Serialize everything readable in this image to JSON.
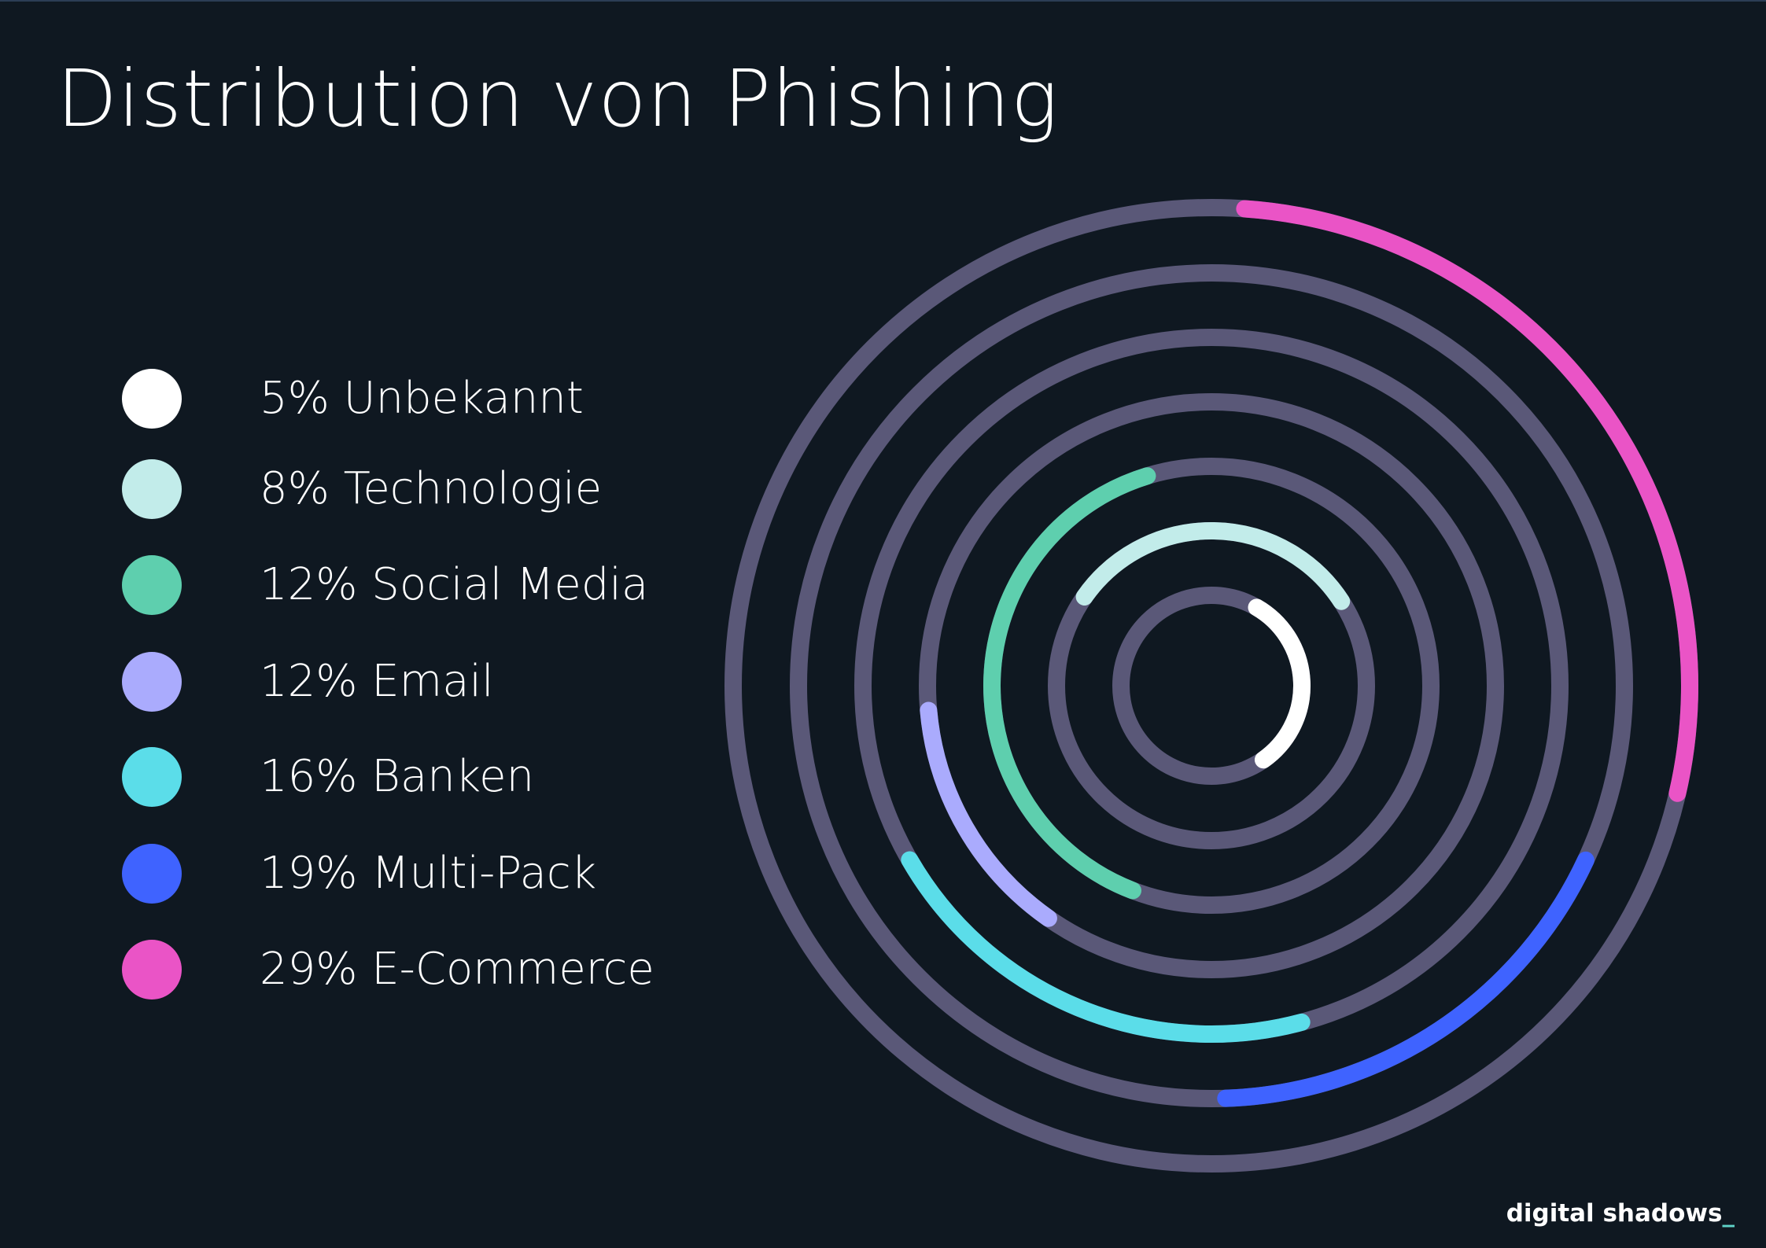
{
  "chart_data": {
    "type": "radial-bar",
    "title": "Distribution von Phishing",
    "series": [
      {
        "name": "Unbekannt",
        "value": 5,
        "label": "5% Unbekannt",
        "color": "#ffffff"
      },
      {
        "name": "Technologie",
        "value": 8,
        "label": "8% Technologie",
        "color": "#c2ecea"
      },
      {
        "name": "Social Media",
        "value": 12,
        "label": "12% Social Media",
        "color": "#5ecfae"
      },
      {
        "name": "Email",
        "value": 12,
        "label": "12% Email",
        "color": "#aaabfd"
      },
      {
        "name": "Banken",
        "value": 16,
        "label": "16% Banken",
        "color": "#5bdde9"
      },
      {
        "name": "Multi-Pack",
        "value": 19,
        "label": "19% Multi-Pack",
        "color": "#3f63ff"
      },
      {
        "name": "E-Commerce",
        "value": 29,
        "label": "29% E-Commerce",
        "color": "#ea54c6"
      }
    ],
    "arcs": [
      {
        "series": "Unbekannt",
        "start_deg": 30,
        "end_deg": 145
      },
      {
        "series": "Technologie",
        "start_deg": 305,
        "end_deg": 57
      },
      {
        "series": "Social Media",
        "start_deg": 201,
        "end_deg": 343
      },
      {
        "series": "Email",
        "start_deg": 215,
        "end_deg": 265
      },
      {
        "series": "Banken",
        "start_deg": 165,
        "end_deg": 240
      },
      {
        "series": "Multi-Pack",
        "start_deg": 115,
        "end_deg": 178
      },
      {
        "series": "E-Commerce",
        "start_deg": 4,
        "end_deg": 103
      }
    ],
    "track_color": "#5a5878",
    "legend_position": "left"
  },
  "brand": {
    "text": "digital shadows",
    "cursor": "_"
  }
}
